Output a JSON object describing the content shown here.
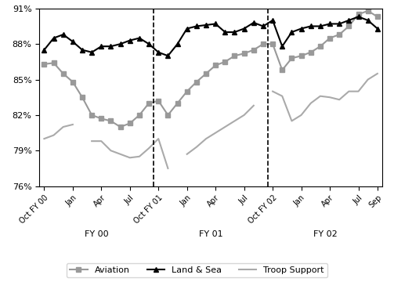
{
  "chart_data": {
    "type": "line",
    "categories": [
      "Oct FY 00",
      null,
      null,
      "Jan",
      null,
      null,
      "Apr",
      null,
      null,
      "Jul",
      null,
      null,
      "Oct FY 01",
      null,
      null,
      "Jan",
      null,
      null,
      "Apr",
      null,
      null,
      "Jul",
      null,
      null,
      "Oct FY 02",
      null,
      null,
      "Jan",
      null,
      null,
      "Apr",
      null,
      null,
      "Jul",
      null,
      "Sep"
    ],
    "series": [
      {
        "name": "Aviation",
        "color": "#999999",
        "marker": "square",
        "line_style": "solid",
        "values": [
          86.3,
          86.4,
          85.5,
          84.8,
          83.5,
          82.0,
          81.7,
          81.5,
          81.0,
          81.3,
          82.0,
          83.0,
          83.2,
          82.0,
          83.0,
          84.0,
          84.8,
          85.5,
          86.2,
          86.5,
          87.0,
          87.2,
          87.5,
          88.0,
          88.0,
          85.8,
          86.8,
          87.0,
          87.3,
          87.8,
          88.5,
          88.8,
          89.5,
          90.5,
          90.8,
          90.3
        ]
      },
      {
        "name": "Land & Sea",
        "color": "#000000",
        "marker": "triangle",
        "line_style": "solid",
        "values": [
          87.5,
          88.5,
          88.8,
          88.2,
          87.5,
          87.3,
          87.8,
          87.8,
          88.0,
          88.3,
          88.5,
          88.0,
          87.3,
          87.0,
          88.0,
          89.3,
          89.5,
          89.6,
          89.7,
          89.0,
          89.0,
          89.3,
          89.8,
          89.5,
          90.0,
          87.8,
          89.0,
          89.3,
          89.5,
          89.5,
          89.7,
          89.7,
          90.0,
          90.3,
          90.0,
          89.3
        ]
      },
      {
        "name": "Troop Support",
        "color": "#aaaaaa",
        "marker": "none",
        "line_style": "solid",
        "values": [
          80.0,
          80.3,
          81.0,
          81.2,
          null,
          79.8,
          79.8,
          79.0,
          78.7,
          78.4,
          78.5,
          79.2,
          80.0,
          77.5,
          null,
          78.7,
          79.3,
          80.0,
          80.5,
          81.0,
          81.5,
          82.0,
          82.8,
          null,
          84.0,
          83.6,
          81.5,
          82.0,
          83.0,
          83.6,
          83.5,
          83.3,
          84.0,
          84.0,
          85.0,
          85.5
        ]
      }
    ],
    "annotations": [
      "FY 00",
      "FY 01",
      "FY 02"
    ],
    "ylim": [
      76,
      91
    ],
    "yticks": [
      {
        "value": 76,
        "label": "76%"
      },
      {
        "value": 79,
        "label": "79%"
      },
      {
        "value": 82,
        "label": "82%"
      },
      {
        "value": 85,
        "label": "85%"
      },
      {
        "value": 88,
        "label": "88%"
      },
      {
        "value": 91,
        "label": "91%"
      }
    ],
    "grid": false,
    "legend": "lower center"
  }
}
